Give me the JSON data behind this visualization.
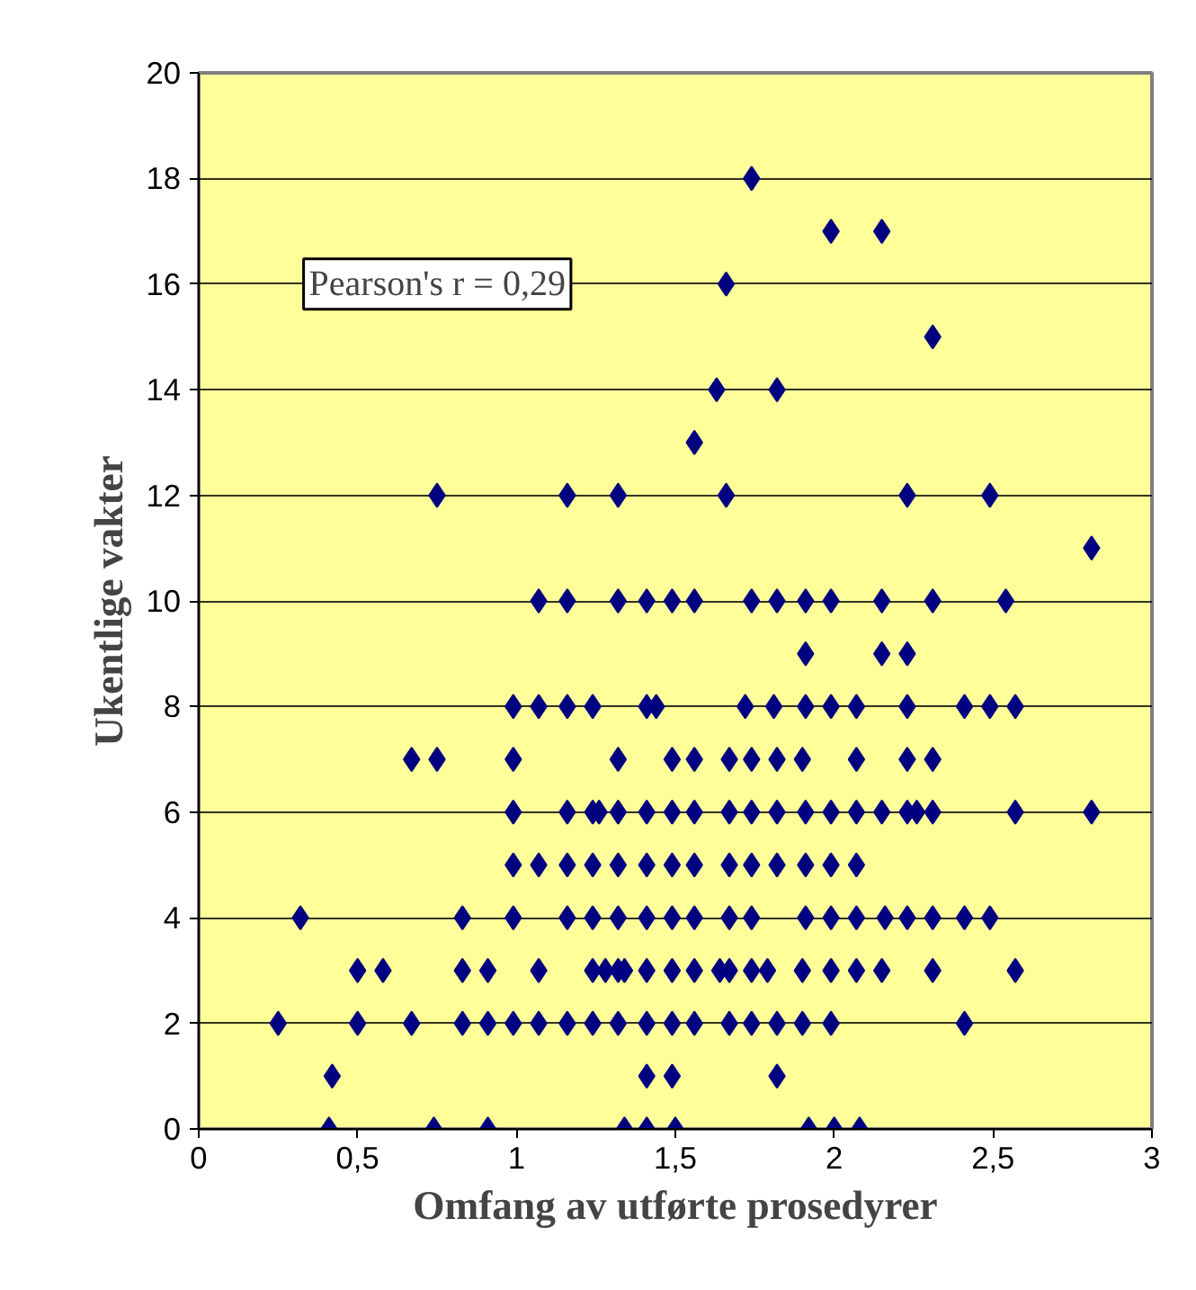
{
  "chart_data": {
    "type": "scatter",
    "xlabel": "Omfang av utførte prosedyrer",
    "ylabel": "Ukentlige vakter",
    "annotations": [
      "Pearson's r = 0,29"
    ],
    "x": [
      0.41,
      0.74,
      0.91,
      1.34,
      1.41,
      1.5,
      1.92,
      2.0,
      2.08,
      0.42,
      1.41,
      1.49,
      1.82,
      0.25,
      0.5,
      0.67,
      0.83,
      0.91,
      0.99,
      1.07,
      1.16,
      1.24,
      1.32,
      1.41,
      1.49,
      1.56,
      1.67,
      1.74,
      1.82,
      1.9,
      1.99,
      2.41,
      0.5,
      0.58,
      0.83,
      0.91,
      1.07,
      1.24,
      1.28,
      1.32,
      1.34,
      1.41,
      1.49,
      1.56,
      1.64,
      1.67,
      1.74,
      1.79,
      1.9,
      1.99,
      2.07,
      2.15,
      2.31,
      2.57,
      0.32,
      0.83,
      0.99,
      1.16,
      1.24,
      1.32,
      1.41,
      1.49,
      1.56,
      1.67,
      1.74,
      1.91,
      1.99,
      2.07,
      2.16,
      2.23,
      2.31,
      2.41,
      2.49,
      0.99,
      1.07,
      1.16,
      1.24,
      1.32,
      1.41,
      1.49,
      1.56,
      1.67,
      1.74,
      1.82,
      1.91,
      1.99,
      2.07,
      0.99,
      1.16,
      1.24,
      1.26,
      1.32,
      1.41,
      1.49,
      1.56,
      1.67,
      1.74,
      1.82,
      1.91,
      1.99,
      2.07,
      2.15,
      2.23,
      2.26,
      2.31,
      2.57,
      2.81,
      0.67,
      0.75,
      0.99,
      1.32,
      1.49,
      1.56,
      1.67,
      1.74,
      1.82,
      1.9,
      2.07,
      2.23,
      2.31,
      0.99,
      1.07,
      1.16,
      1.24,
      1.41,
      1.44,
      1.72,
      1.81,
      1.91,
      1.99,
      2.07,
      2.23,
      2.41,
      2.49,
      2.57,
      1.91,
      2.15,
      2.23,
      1.07,
      1.16,
      1.32,
      1.41,
      1.49,
      1.56,
      1.74,
      1.82,
      1.91,
      1.99,
      2.15,
      2.31,
      2.54,
      2.81,
      0.75,
      1.16,
      1.32,
      1.66,
      2.23,
      2.49,
      1.56,
      1.63,
      1.82,
      2.31,
      1.66,
      1.99,
      2.15,
      1.74
    ],
    "values": [
      0,
      0,
      0,
      0,
      0,
      0,
      0,
      0,
      0,
      1,
      1,
      1,
      1,
      2,
      2,
      2,
      2,
      2,
      2,
      2,
      2,
      2,
      2,
      2,
      2,
      2,
      2,
      2,
      2,
      2,
      2,
      2,
      3,
      3,
      3,
      3,
      3,
      3,
      3,
      3,
      3,
      3,
      3,
      3,
      3,
      3,
      3,
      3,
      3,
      3,
      3,
      3,
      3,
      3,
      4,
      4,
      4,
      4,
      4,
      4,
      4,
      4,
      4,
      4,
      4,
      4,
      4,
      4,
      4,
      4,
      4,
      4,
      4,
      5,
      5,
      5,
      5,
      5,
      5,
      5,
      5,
      5,
      5,
      5,
      5,
      5,
      5,
      6,
      6,
      6,
      6,
      6,
      6,
      6,
      6,
      6,
      6,
      6,
      6,
      6,
      6,
      6,
      6,
      6,
      6,
      6,
      6,
      7,
      7,
      7,
      7,
      7,
      7,
      7,
      7,
      7,
      7,
      7,
      7,
      7,
      8,
      8,
      8,
      8,
      8,
      8,
      8,
      8,
      8,
      8,
      8,
      8,
      8,
      8,
      8,
      9,
      9,
      9,
      10,
      10,
      10,
      10,
      10,
      10,
      10,
      10,
      10,
      10,
      10,
      10,
      10,
      11,
      12,
      12,
      12,
      12,
      12,
      12,
      13,
      14,
      14,
      15,
      16,
      17,
      17,
      18
    ],
    "color": "#000080",
    "marker": "diamond",
    "grid": "y",
    "legend": false,
    "xlim": [
      0,
      3
    ],
    "xticks": [
      0,
      {
        "value": 0.5,
        "label": "0,5"
      },
      1,
      {
        "value": 1.5,
        "label": "1,5"
      },
      2,
      {
        "value": 2.5,
        "label": "2,5"
      },
      3
    ],
    "ylim": [
      0,
      20
    ],
    "yticks": [
      0,
      2,
      4,
      6,
      8,
      10,
      12,
      14,
      16,
      18,
      20
    ]
  }
}
